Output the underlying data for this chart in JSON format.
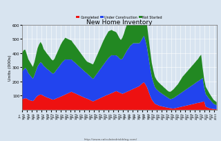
{
  "title": "New Home Inventory",
  "ylabel": "Units (000s)",
  "url": "http://www.calculatedriskblog.com/",
  "legend": [
    "Completed",
    "Under Construction",
    "Not Started"
  ],
  "colors": [
    "#ee1111",
    "#2244ee",
    "#228822"
  ],
  "bg_color": "#d8e4f0",
  "ylim": [
    0,
    600
  ],
  "yticks": [
    100,
    200,
    300,
    400,
    500,
    600
  ],
  "xlim_start": 1973.0,
  "xlim_end": 2013.5,
  "completed": [
    75,
    78,
    82,
    80,
    72,
    68,
    65,
    62,
    72,
    88,
    98,
    105,
    108,
    105,
    98,
    93,
    88,
    84,
    80,
    75,
    72,
    74,
    80,
    84,
    88,
    93,
    98,
    103,
    108,
    113,
    118,
    123,
    128,
    122,
    118,
    113,
    108,
    103,
    98,
    93,
    88,
    83,
    80,
    74,
    70,
    64,
    60,
    64,
    70,
    74,
    80,
    84,
    90,
    94,
    100,
    104,
    108,
    113,
    118,
    122,
    128,
    132,
    128,
    122,
    118,
    113,
    118,
    122,
    128,
    132,
    138,
    142,
    148,
    152,
    158,
    162,
    168,
    178,
    188,
    195,
    178,
    158,
    128,
    98,
    73,
    58,
    43,
    38,
    33,
    28,
    26,
    23,
    21,
    18,
    16,
    14,
    12,
    10,
    9,
    11,
    14,
    16,
    19,
    21,
    24,
    26,
    29,
    31,
    34,
    36,
    39,
    41,
    44,
    47,
    49,
    51,
    54,
    57,
    59,
    22,
    18,
    13,
    10,
    8,
    6,
    5,
    4,
    3,
    3
  ],
  "under_construction": [
    195,
    205,
    215,
    205,
    188,
    178,
    168,
    158,
    172,
    188,
    208,
    218,
    228,
    222,
    212,
    208,
    202,
    198,
    193,
    188,
    183,
    188,
    198,
    208,
    218,
    228,
    238,
    243,
    248,
    242,
    237,
    232,
    228,
    222,
    218,
    213,
    208,
    203,
    198,
    193,
    188,
    183,
    178,
    173,
    168,
    163,
    158,
    168,
    178,
    188,
    198,
    208,
    218,
    228,
    238,
    248,
    258,
    263,
    268,
    262,
    257,
    252,
    248,
    242,
    237,
    248,
    262,
    278,
    292,
    302,
    313,
    318,
    322,
    318,
    312,
    308,
    302,
    308,
    318,
    328,
    308,
    278,
    238,
    198,
    162,
    138,
    118,
    108,
    103,
    98,
    93,
    88,
    83,
    78,
    73,
    68,
    63,
    68,
    73,
    78,
    83,
    88,
    93,
    98,
    103,
    108,
    113,
    118,
    123,
    128,
    133,
    138,
    143,
    148,
    153,
    158,
    163,
    168,
    98,
    88,
    78,
    68,
    58,
    48,
    38,
    33,
    28,
    26
  ],
  "not_started": [
    130,
    138,
    128,
    108,
    98,
    93,
    88,
    83,
    93,
    108,
    128,
    138,
    143,
    133,
    118,
    113,
    108,
    103,
    98,
    93,
    93,
    98,
    108,
    118,
    128,
    138,
    143,
    148,
    153,
    148,
    143,
    138,
    133,
    128,
    123,
    118,
    113,
    108,
    103,
    98,
    93,
    88,
    83,
    88,
    93,
    98,
    103,
    113,
    123,
    133,
    143,
    153,
    163,
    173,
    178,
    183,
    188,
    183,
    178,
    173,
    168,
    163,
    153,
    143,
    138,
    148,
    158,
    173,
    183,
    193,
    198,
    198,
    193,
    183,
    173,
    163,
    158,
    163,
    173,
    183,
    173,
    158,
    138,
    118,
    98,
    83,
    73,
    68,
    63,
    62,
    58,
    57,
    53,
    52,
    48,
    47,
    52,
    57,
    62,
    67,
    72,
    77,
    87,
    97,
    107,
    112,
    117,
    122,
    127,
    132,
    137,
    142,
    147,
    152,
    157,
    167,
    172,
    68,
    58,
    52,
    47,
    42,
    37,
    32,
    27,
    25,
    22
  ]
}
